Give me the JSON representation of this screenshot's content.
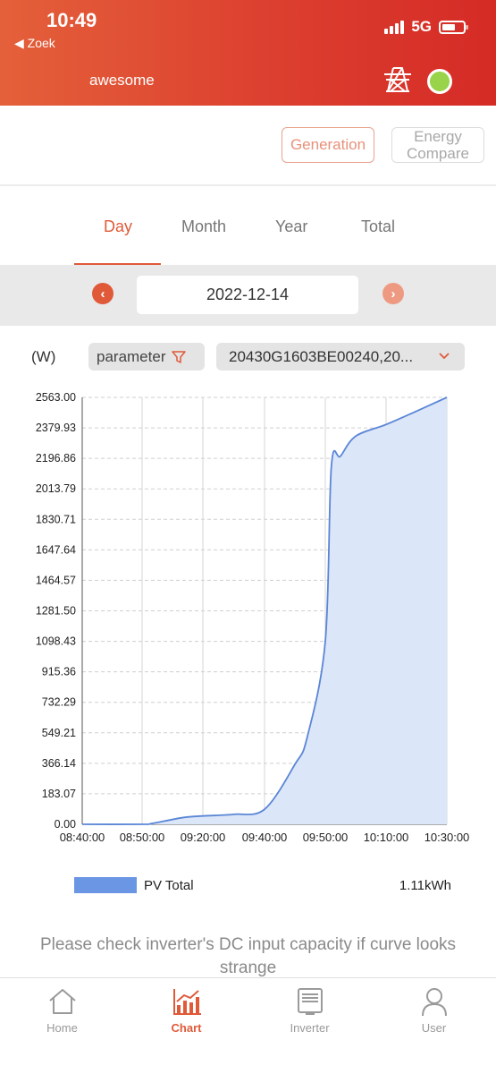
{
  "status_bar": {
    "time": "10:49",
    "back_label": "◀ Zoek",
    "network": "5G"
  },
  "header": {
    "plant_name": "awesome",
    "tower_icon": "power-tower-icon",
    "status_color": "#98d34a"
  },
  "actions": {
    "generation_label": "Generation",
    "energy_compare_label": "Energy Compare"
  },
  "tabs": [
    {
      "label": "Day",
      "active": true
    },
    {
      "label": "Month",
      "active": false
    },
    {
      "label": "Year",
      "active": false
    },
    {
      "label": "Total",
      "active": false
    }
  ],
  "date_nav": {
    "date": "2022-12-14"
  },
  "filters": {
    "unit": "(W)",
    "parameter_label": "parameter",
    "device": "20430G1603BE00240,20..."
  },
  "chart_data": {
    "type": "area",
    "ylabel": "(W)",
    "ylim": [
      0,
      2563
    ],
    "y_ticks": [
      "2563.00",
      "2379.93",
      "2196.86",
      "2013.79",
      "1830.71",
      "1647.64",
      "1464.57",
      "1281.50",
      "1098.43",
      "915.36",
      "732.29",
      "549.21",
      "366.14",
      "183.07",
      "0.00"
    ],
    "x_ticks": [
      "08:40:00",
      "08:50:00",
      "09:20:00",
      "09:40:00",
      "09:50:00",
      "10:10:00",
      "10:30:00"
    ],
    "series": [
      {
        "name": "PV Total",
        "x": [
          "08:40:00",
          "08:50:00",
          "08:55:00",
          "09:10:00",
          "09:20:00",
          "09:30:00",
          "09:40:00",
          "09:45:00",
          "09:47:00",
          "09:50:00",
          "09:52:00",
          "09:55:00",
          "10:00:00",
          "10:10:00",
          "10:20:00",
          "10:30:00"
        ],
        "values": [
          0,
          0,
          5,
          40,
          50,
          60,
          90,
          360,
          520,
          1100,
          2150,
          2210,
          2330,
          2400,
          2480,
          2563
        ]
      }
    ],
    "grid": true,
    "legend": "bottom"
  },
  "legend": {
    "series_name": "PV Total",
    "total": "1.11kWh",
    "color": "#6b96e3"
  },
  "notice": "Please check inverter's DC input capacity if curve looks strange",
  "bottom_nav": [
    {
      "label": "Home",
      "icon": "home-icon",
      "active": false
    },
    {
      "label": "Chart",
      "icon": "chart-icon",
      "active": true
    },
    {
      "label": "Inverter",
      "icon": "inverter-icon",
      "active": false
    },
    {
      "label": "User",
      "icon": "user-icon",
      "active": false
    }
  ],
  "colors": {
    "accent": "#e05a3a",
    "area_fill": "#dbe6f8",
    "line": "#5b86d6"
  }
}
